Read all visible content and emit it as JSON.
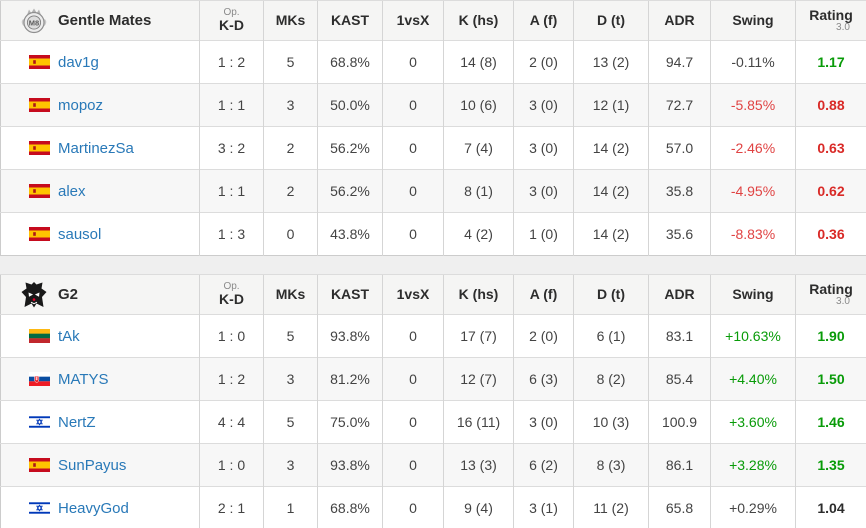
{
  "colors": {
    "green": "#089b08",
    "red": "#d92a27",
    "swing_red": "#e04343",
    "neutral_text": "#454545",
    "player_link_blue": "#2979b8",
    "page_background": "#efefef"
  },
  "flags": {
    "es": "Spain",
    "lt": "Lithuania",
    "sk": "Slovakia",
    "il": "Israel"
  },
  "columns": [
    {
      "key": "kd",
      "label": "K-D",
      "sup": "Op."
    },
    {
      "key": "mks",
      "label": "MKs"
    },
    {
      "key": "kast",
      "label": "KAST"
    },
    {
      "key": "vsx",
      "label": "1vsX"
    },
    {
      "key": "khs",
      "label": "K (hs)"
    },
    {
      "key": "af",
      "label": "A (f)"
    },
    {
      "key": "dt",
      "label": "D (t)"
    },
    {
      "key": "adr",
      "label": "ADR"
    },
    {
      "key": "swing",
      "label": "Swing"
    },
    {
      "key": "rating",
      "label": "Rating",
      "sub": "3.0"
    }
  ],
  "tables": [
    {
      "team": "Gentle Mates",
      "logo": "gentle-mates",
      "rows": [
        {
          "flag": "es",
          "player": "dav1g",
          "kd": "1 : 2",
          "mks": "5",
          "kast": "68.8%",
          "vsx": "0",
          "khs": "14 (8)",
          "af": "2 (0)",
          "dt": "13 (2)",
          "adr": "94.7",
          "swing": "-0.11%",
          "swing_color": "neutral",
          "rating": "1.17",
          "rating_color": "green"
        },
        {
          "flag": "es",
          "player": "mopoz",
          "kd": "1 : 1",
          "mks": "3",
          "kast": "50.0%",
          "vsx": "0",
          "khs": "10 (6)",
          "af": "3 (0)",
          "dt": "12 (1)",
          "adr": "72.7",
          "swing": "-5.85%",
          "swing_color": "red",
          "rating": "0.88",
          "rating_color": "red"
        },
        {
          "flag": "es",
          "player": "MartinezSa",
          "kd": "3 : 2",
          "mks": "2",
          "kast": "56.2%",
          "vsx": "0",
          "khs": "7 (4)",
          "af": "3 (0)",
          "dt": "14 (2)",
          "adr": "57.0",
          "swing": "-2.46%",
          "swing_color": "red",
          "rating": "0.63",
          "rating_color": "red"
        },
        {
          "flag": "es",
          "player": "alex",
          "kd": "1 : 1",
          "mks": "2",
          "kast": "56.2%",
          "vsx": "0",
          "khs": "8 (1)",
          "af": "3 (0)",
          "dt": "14 (2)",
          "adr": "35.8",
          "swing": "-4.95%",
          "swing_color": "red",
          "rating": "0.62",
          "rating_color": "red"
        },
        {
          "flag": "es",
          "player": "sausol",
          "kd": "1 : 3",
          "mks": "0",
          "kast": "43.8%",
          "vsx": "0",
          "khs": "4 (2)",
          "af": "1 (0)",
          "dt": "14 (2)",
          "adr": "35.6",
          "swing": "-8.83%",
          "swing_color": "red",
          "rating": "0.36",
          "rating_color": "red"
        }
      ]
    },
    {
      "team": "G2",
      "logo": "g2",
      "rows": [
        {
          "flag": "lt",
          "player": "tAk",
          "kd": "1 : 0",
          "mks": "5",
          "kast": "93.8%",
          "vsx": "0",
          "khs": "17 (7)",
          "af": "2 (0)",
          "dt": "6 (1)",
          "adr": "83.1",
          "swing": "+10.63%",
          "swing_color": "green",
          "rating": "1.90",
          "rating_color": "green"
        },
        {
          "flag": "sk",
          "player": "MATYS",
          "kd": "1 : 2",
          "mks": "3",
          "kast": "81.2%",
          "vsx": "0",
          "khs": "12 (7)",
          "af": "6 (3)",
          "dt": "8 (2)",
          "adr": "85.4",
          "swing": "+4.40%",
          "swing_color": "green",
          "rating": "1.50",
          "rating_color": "green"
        },
        {
          "flag": "il",
          "player": "NertZ",
          "kd": "4 : 4",
          "mks": "5",
          "kast": "75.0%",
          "vsx": "0",
          "khs": "16 (11)",
          "af": "3 (0)",
          "dt": "10 (3)",
          "adr": "100.9",
          "swing": "+3.60%",
          "swing_color": "green",
          "rating": "1.46",
          "rating_color": "green"
        },
        {
          "flag": "es",
          "player": "SunPayus",
          "kd": "1 : 0",
          "mks": "3",
          "kast": "93.8%",
          "vsx": "0",
          "khs": "13 (3)",
          "af": "6 (2)",
          "dt": "8 (3)",
          "adr": "86.1",
          "swing": "+3.28%",
          "swing_color": "green",
          "rating": "1.35",
          "rating_color": "green"
        },
        {
          "flag": "il",
          "player": "HeavyGod",
          "kd": "2 : 1",
          "mks": "1",
          "kast": "68.8%",
          "vsx": "0",
          "khs": "9 (4)",
          "af": "3 (1)",
          "dt": "11 (2)",
          "adr": "65.8",
          "swing": "+0.29%",
          "swing_color": "neutral",
          "rating": "1.04",
          "rating_color": "neutral"
        }
      ]
    }
  ]
}
